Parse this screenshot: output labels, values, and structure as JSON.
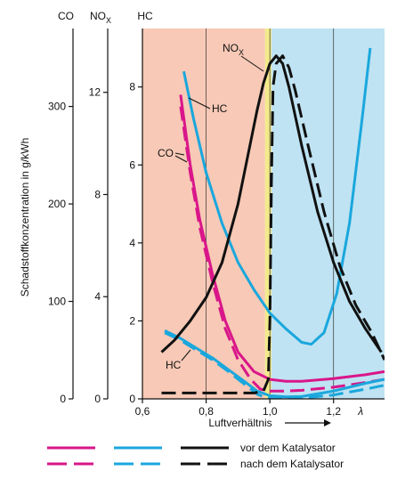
{
  "chart_data": {
    "type": "line",
    "ylabel": "Schadstoffkonzentration in g/kWh",
    "xlabel": "Luftverhältnis",
    "x_symbol": "λ",
    "xlim": [
      0.6,
      1.36
    ],
    "x_ticks": [
      {
        "v": 0.6,
        "label": "0,6"
      },
      {
        "v": 0.8,
        "label": "0,8"
      },
      {
        "v": 1.0,
        "label": "1,0"
      },
      {
        "v": 1.2,
        "label": "1,2"
      }
    ],
    "axes": [
      {
        "key": "hc",
        "header": "HC",
        "range": [
          0,
          9.5
        ],
        "ticks": [
          {
            "v": 0,
            "label": "0"
          },
          {
            "v": 2,
            "label": "2"
          },
          {
            "v": 4,
            "label": "4"
          },
          {
            "v": 6,
            "label": "6"
          },
          {
            "v": 8,
            "label": "8"
          }
        ]
      },
      {
        "key": "nox",
        "header": "NO",
        "header_sub": "X",
        "range": [
          0,
          14.5
        ],
        "ticks": [
          {
            "v": 0,
            "label": "0"
          },
          {
            "v": 4,
            "label": "4"
          },
          {
            "v": 8,
            "label": "8"
          },
          {
            "v": 12,
            "label": "12"
          }
        ]
      },
      {
        "key": "co",
        "header": "CO",
        "range": [
          0,
          380
        ],
        "ticks": [
          {
            "v": 0,
            "label": "0"
          },
          {
            "v": 100,
            "label": "100"
          },
          {
            "v": 200,
            "label": "200"
          },
          {
            "v": 300,
            "label": "300"
          }
        ]
      }
    ],
    "regions": [
      {
        "name": "rich",
        "from": 0.6,
        "to": 0.985,
        "color": "#f7c9b6"
      },
      {
        "name": "window",
        "from": 0.985,
        "to": 1.005,
        "color": "#f3ea8a"
      },
      {
        "name": "lean",
        "from": 1.005,
        "to": 1.36,
        "color": "#bfe3f2"
      }
    ],
    "series": [
      {
        "id": "co_before",
        "gas": "CO",
        "stage": "before",
        "color": "#d9168a",
        "dashed": false,
        "x": [
          0.72,
          0.75,
          0.78,
          0.82,
          0.86,
          0.9,
          0.95,
          1.0,
          1.05,
          1.1,
          1.2,
          1.3,
          1.36
        ],
        "y": [
          7.8,
          6.0,
          4.6,
          3.2,
          2.0,
          1.2,
          0.7,
          0.5,
          0.45,
          0.45,
          0.52,
          0.62,
          0.7
        ]
      },
      {
        "id": "co_after",
        "gas": "CO",
        "stage": "after",
        "color": "#d9168a",
        "dashed": true,
        "x": [
          0.72,
          0.75,
          0.78,
          0.82,
          0.86,
          0.9,
          0.94,
          0.97,
          1.0,
          1.05,
          1.1,
          1.2,
          1.3,
          1.36
        ],
        "y": [
          7.5,
          5.8,
          4.4,
          3.0,
          1.8,
          1.0,
          0.5,
          0.25,
          0.2,
          0.2,
          0.22,
          0.3,
          0.42,
          0.5
        ]
      },
      {
        "id": "hc_before_up",
        "gas": "HC",
        "stage": "before",
        "color": "#1aa7dd",
        "dashed": false,
        "x": [
          0.73,
          0.76,
          0.8,
          0.85,
          0.9,
          0.95,
          1.0,
          1.05,
          1.1,
          1.13,
          1.17,
          1.21,
          1.25,
          1.29,
          1.315
        ],
        "y": [
          8.4,
          7.2,
          5.8,
          4.5,
          3.5,
          2.8,
          2.2,
          1.8,
          1.45,
          1.4,
          1.7,
          2.7,
          4.5,
          7.2,
          9.0
        ]
      },
      {
        "id": "hc_before_low",
        "gas": "HC",
        "stage": "before",
        "color": "#1aa7dd",
        "dashed": false,
        "x": [
          0.67,
          0.72,
          0.77,
          0.82,
          0.87,
          0.92,
          0.96,
          1.0,
          1.05,
          1.1,
          1.2,
          1.3,
          1.36
        ],
        "y": [
          1.75,
          1.55,
          1.3,
          1.05,
          0.75,
          0.45,
          0.2,
          0.08,
          0.05,
          0.06,
          0.2,
          0.4,
          0.5
        ]
      },
      {
        "id": "hc_after",
        "gas": "HC",
        "stage": "after",
        "color": "#1aa7dd",
        "dashed": true,
        "x": [
          0.67,
          0.72,
          0.77,
          0.82,
          0.87,
          0.92,
          0.96,
          0.99,
          1.02,
          1.05,
          1.1,
          1.2,
          1.3,
          1.36
        ],
        "y": [
          1.7,
          1.5,
          1.25,
          1.0,
          0.7,
          0.38,
          0.12,
          0.02,
          0.0,
          0.0,
          0.02,
          0.1,
          0.25,
          0.35
        ]
      },
      {
        "id": "nox_before",
        "gas": "NOX",
        "stage": "before",
        "color": "#111111",
        "dashed": false,
        "x": [
          0.66,
          0.7,
          0.75,
          0.8,
          0.85,
          0.9,
          0.93,
          0.96,
          0.98,
          1.0,
          1.02,
          1.04,
          1.06,
          1.1,
          1.15,
          1.2,
          1.25,
          1.3,
          1.35
        ],
        "y": [
          1.2,
          1.5,
          2.0,
          2.6,
          3.5,
          5.0,
          6.2,
          7.4,
          8.1,
          8.6,
          8.8,
          8.6,
          8.0,
          6.5,
          4.8,
          3.5,
          2.5,
          1.8,
          1.2
        ]
      },
      {
        "id": "nox_after",
        "gas": "NOX",
        "stage": "after",
        "color": "#111111",
        "dashed": true,
        "x": [
          0.66,
          0.8,
          0.9,
          0.95,
          0.98,
          0.995,
          1.0,
          1.005,
          1.01,
          1.02,
          1.04,
          1.06,
          1.08,
          1.12,
          1.17,
          1.22,
          1.27,
          1.32,
          1.36
        ],
        "y": [
          0.15,
          0.15,
          0.15,
          0.15,
          0.2,
          0.5,
          2.0,
          5.5,
          8.0,
          8.6,
          8.8,
          8.5,
          7.9,
          6.5,
          4.8,
          3.4,
          2.4,
          1.7,
          1.0
        ]
      }
    ],
    "annotations": {
      "hc_upper": "HC",
      "co": "CO",
      "nox": "NO",
      "nox_sub": "X",
      "hc_lower": "HC"
    },
    "legend": {
      "before": "vor dem Katalysator",
      "after": "nach dem Katalysator",
      "colors": [
        "#d9168a",
        "#1aa7dd",
        "#111111"
      ]
    }
  }
}
